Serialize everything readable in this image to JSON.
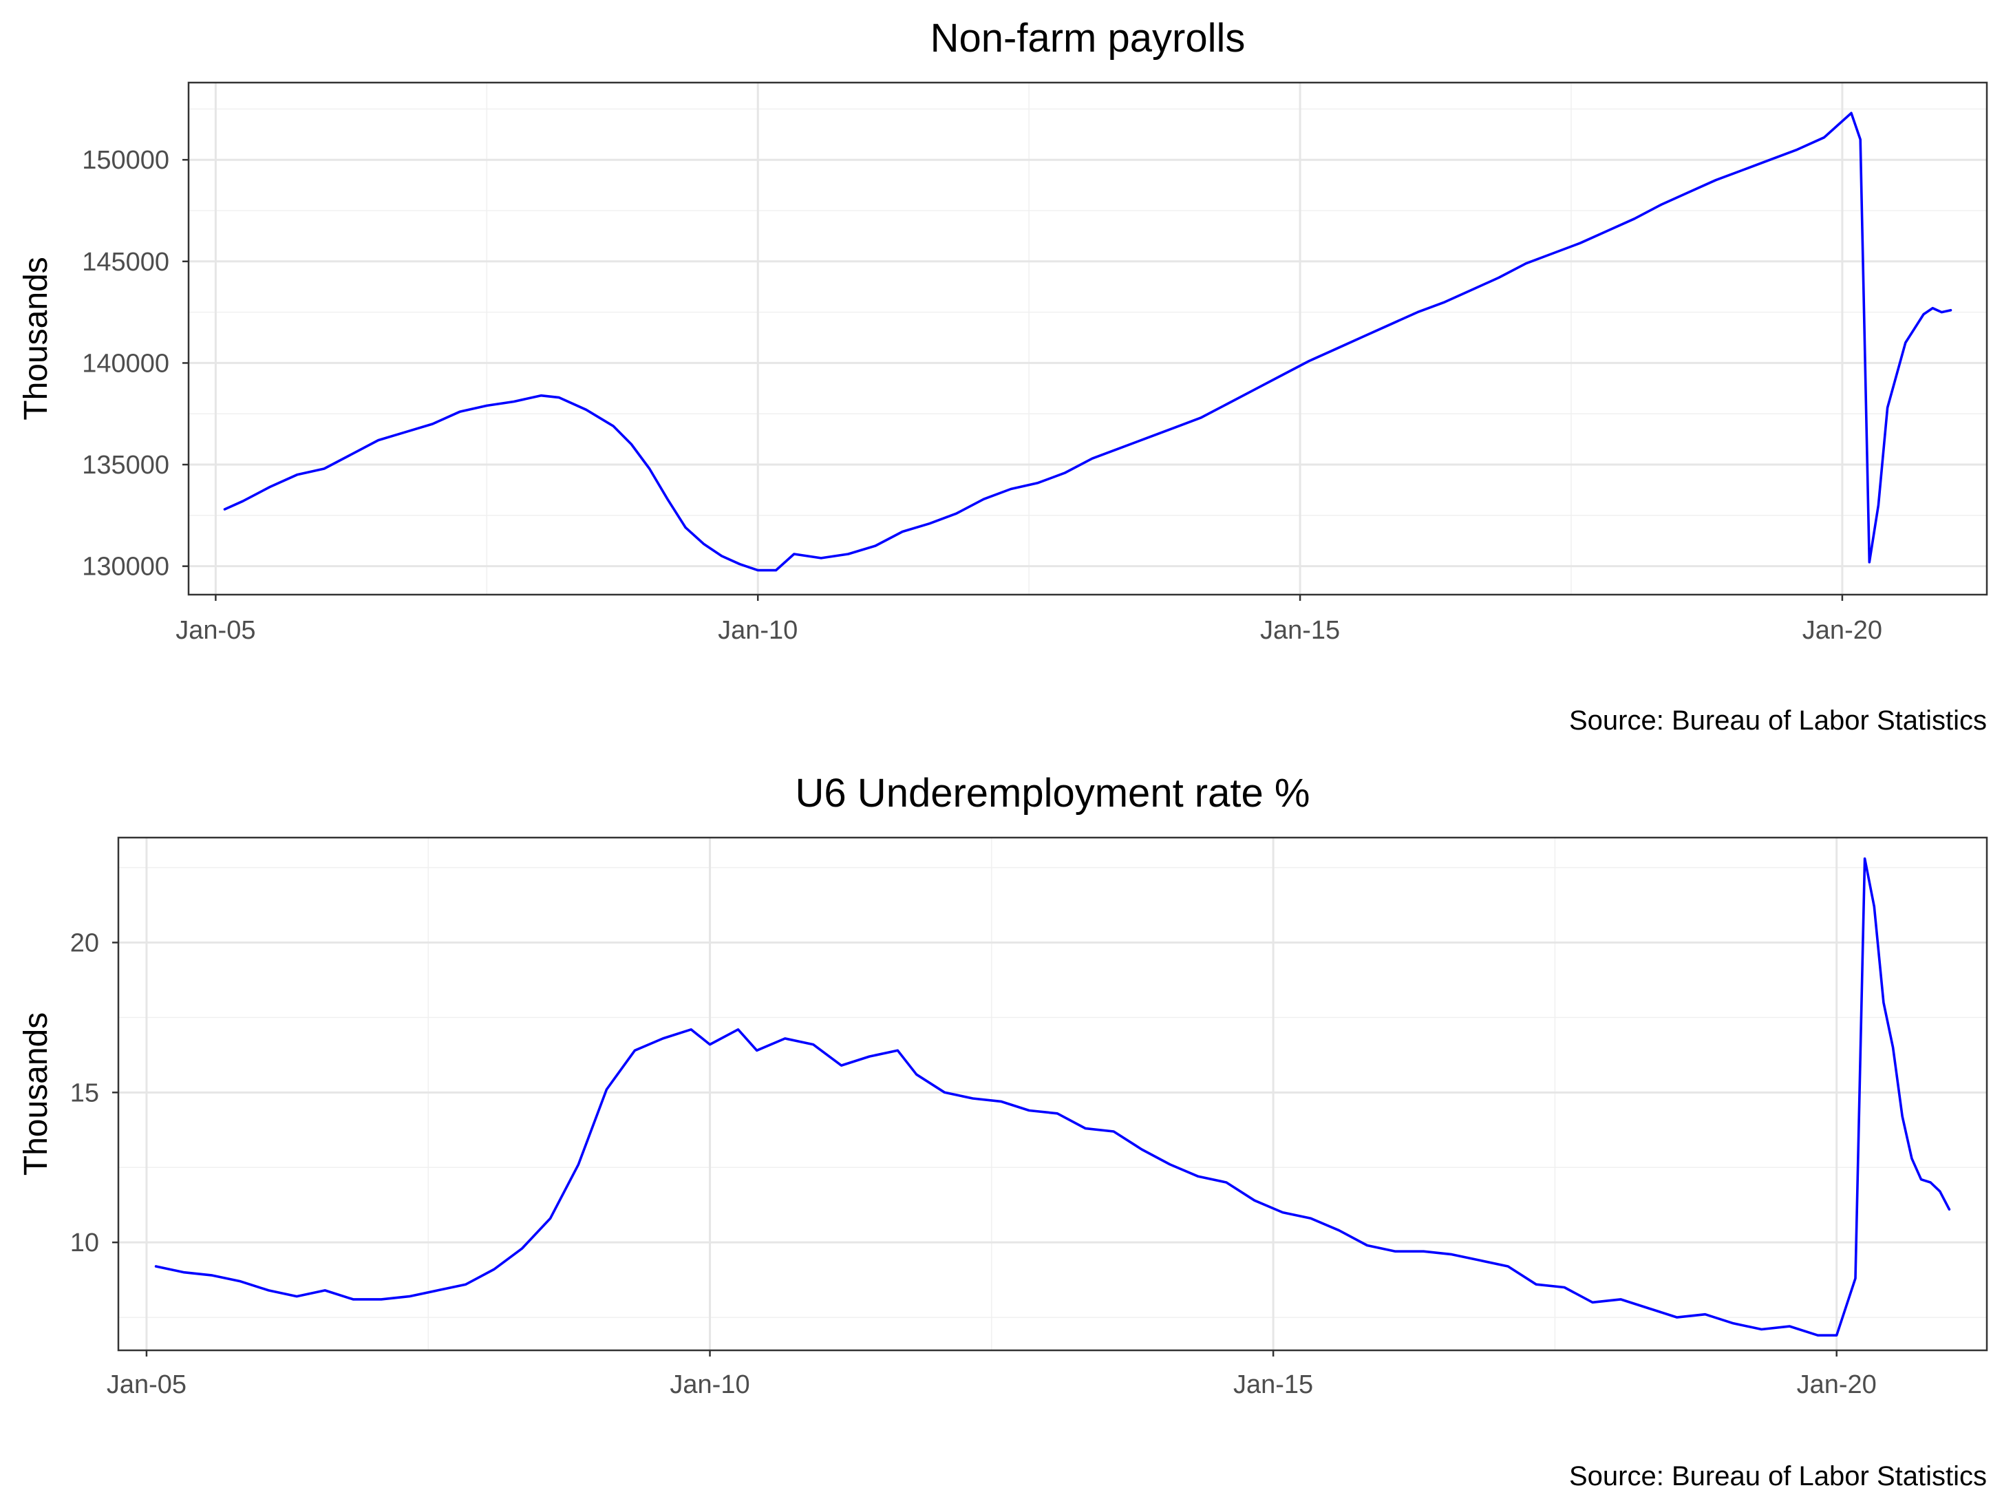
{
  "colors": {
    "series": "#0000ff",
    "grid_major": "#e6e6e6",
    "frame": "#333333"
  },
  "chart_data": [
    {
      "type": "line",
      "title": "Non-farm payrolls",
      "xlabel": "",
      "ylabel": "Thousands",
      "caption": "Source: Bureau of Labor Statistics",
      "xlim": [
        "2004-10",
        "2021-05"
      ],
      "ylim": [
        128600,
        153800
      ],
      "x_ticks": [
        "2005-01",
        "2010-01",
        "2015-01",
        "2020-01"
      ],
      "x_tick_labels": [
        "Jan-05",
        "Jan-10",
        "Jan-15",
        "Jan-20"
      ],
      "y_ticks": [
        130000,
        135000,
        140000,
        145000,
        150000
      ],
      "y_tick_labels": [
        "130000",
        "135000",
        "140000",
        "145000",
        "150000"
      ],
      "grid": true,
      "legend": "none",
      "series": [
        {
          "points": [
            [
              "2005-02",
              132800
            ],
            [
              "2005-04",
              133200
            ],
            [
              "2005-07",
              133900
            ],
            [
              "2005-10",
              134500
            ],
            [
              "2006-01",
              134800
            ],
            [
              "2006-04",
              135500
            ],
            [
              "2006-07",
              136200
            ],
            [
              "2006-10",
              136600
            ],
            [
              "2007-01",
              137000
            ],
            [
              "2007-04",
              137600
            ],
            [
              "2007-07",
              137900
            ],
            [
              "2007-10",
              138100
            ],
            [
              "2008-01",
              138400
            ],
            [
              "2008-03",
              138300
            ],
            [
              "2008-06",
              137700
            ],
            [
              "2008-09",
              136900
            ],
            [
              "2008-11",
              136000
            ],
            [
              "2009-01",
              134800
            ],
            [
              "2009-03",
              133300
            ],
            [
              "2009-05",
              131900
            ],
            [
              "2009-07",
              131100
            ],
            [
              "2009-09",
              130500
            ],
            [
              "2009-11",
              130100
            ],
            [
              "2010-01",
              129800
            ],
            [
              "2010-03",
              129800
            ],
            [
              "2010-05",
              130600
            ],
            [
              "2010-08",
              130400
            ],
            [
              "2010-11",
              130600
            ],
            [
              "2011-02",
              131000
            ],
            [
              "2011-05",
              131700
            ],
            [
              "2011-08",
              132100
            ],
            [
              "2011-11",
              132600
            ],
            [
              "2012-02",
              133300
            ],
            [
              "2012-05",
              133800
            ],
            [
              "2012-08",
              134100
            ],
            [
              "2012-11",
              134600
            ],
            [
              "2013-02",
              135300
            ],
            [
              "2013-05",
              135800
            ],
            [
              "2013-08",
              136300
            ],
            [
              "2013-11",
              136800
            ],
            [
              "2014-02",
              137300
            ],
            [
              "2014-05",
              138000
            ],
            [
              "2014-08",
              138700
            ],
            [
              "2014-11",
              139400
            ],
            [
              "2015-02",
              140100
            ],
            [
              "2015-05",
              140700
            ],
            [
              "2015-08",
              141300
            ],
            [
              "2015-11",
              141900
            ],
            [
              "2016-02",
              142500
            ],
            [
              "2016-05",
              143000
            ],
            [
              "2016-08",
              143600
            ],
            [
              "2016-11",
              144200
            ],
            [
              "2017-02",
              144900
            ],
            [
              "2017-05",
              145400
            ],
            [
              "2017-08",
              145900
            ],
            [
              "2017-11",
              146500
            ],
            [
              "2018-02",
              147100
            ],
            [
              "2018-05",
              147800
            ],
            [
              "2018-08",
              148400
            ],
            [
              "2018-11",
              149000
            ],
            [
              "2019-02",
              149500
            ],
            [
              "2019-05",
              150000
            ],
            [
              "2019-08",
              150500
            ],
            [
              "2019-11",
              151100
            ],
            [
              "2020-02",
              152300
            ],
            [
              "2020-03",
              151000
            ],
            [
              "2020-04",
              130200
            ],
            [
              "2020-05",
              133000
            ],
            [
              "2020-06",
              137800
            ],
            [
              "2020-07",
              139400
            ],
            [
              "2020-08",
              141000
            ],
            [
              "2020-09",
              141700
            ],
            [
              "2020-10",
              142400
            ],
            [
              "2020-11",
              142700
            ],
            [
              "2020-12",
              142500
            ],
            [
              "2021-01",
              142600
            ]
          ]
        }
      ]
    },
    {
      "type": "line",
      "title": "U6 Underemployment rate %",
      "xlabel": "",
      "ylabel": "Thousands",
      "caption": "Source: Bureau of Labor Statistics",
      "xlim": [
        "2004-10",
        "2021-05"
      ],
      "ylim": [
        6.4,
        23.5
      ],
      "x_ticks": [
        "2005-01",
        "2010-01",
        "2015-01",
        "2020-01"
      ],
      "x_tick_labels": [
        "Jan-05",
        "Jan-10",
        "Jan-15",
        "Jan-20"
      ],
      "y_ticks": [
        10,
        15,
        20
      ],
      "y_tick_labels": [
        "10",
        "15",
        "20"
      ],
      "grid": true,
      "legend": "none",
      "series": [
        {
          "points": [
            [
              "2005-02",
              9.2
            ],
            [
              "2005-05",
              9.0
            ],
            [
              "2005-08",
              8.9
            ],
            [
              "2005-11",
              8.7
            ],
            [
              "2006-02",
              8.4
            ],
            [
              "2006-05",
              8.2
            ],
            [
              "2006-08",
              8.4
            ],
            [
              "2006-11",
              8.1
            ],
            [
              "2007-02",
              8.1
            ],
            [
              "2007-05",
              8.2
            ],
            [
              "2007-08",
              8.4
            ],
            [
              "2007-11",
              8.6
            ],
            [
              "2008-02",
              9.1
            ],
            [
              "2008-05",
              9.8
            ],
            [
              "2008-08",
              10.8
            ],
            [
              "2008-11",
              12.6
            ],
            [
              "2009-02",
              15.1
            ],
            [
              "2009-05",
              16.4
            ],
            [
              "2009-08",
              16.8
            ],
            [
              "2009-11",
              17.1
            ],
            [
              "2010-01",
              16.6
            ],
            [
              "2010-04",
              17.1
            ],
            [
              "2010-06",
              16.4
            ],
            [
              "2010-09",
              16.8
            ],
            [
              "2010-12",
              16.6
            ],
            [
              "2011-03",
              15.9
            ],
            [
              "2011-06",
              16.2
            ],
            [
              "2011-09",
              16.4
            ],
            [
              "2011-11",
              15.6
            ],
            [
              "2012-02",
              15.0
            ],
            [
              "2012-05",
              14.8
            ],
            [
              "2012-08",
              14.7
            ],
            [
              "2012-11",
              14.4
            ],
            [
              "2013-02",
              14.3
            ],
            [
              "2013-05",
              13.8
            ],
            [
              "2013-08",
              13.7
            ],
            [
              "2013-11",
              13.1
            ],
            [
              "2014-02",
              12.6
            ],
            [
              "2014-05",
              12.2
            ],
            [
              "2014-08",
              12.0
            ],
            [
              "2014-11",
              11.4
            ],
            [
              "2015-02",
              11.0
            ],
            [
              "2015-05",
              10.8
            ],
            [
              "2015-08",
              10.4
            ],
            [
              "2015-11",
              9.9
            ],
            [
              "2016-02",
              9.7
            ],
            [
              "2016-05",
              9.7
            ],
            [
              "2016-08",
              9.6
            ],
            [
              "2016-11",
              9.4
            ],
            [
              "2017-02",
              9.2
            ],
            [
              "2017-05",
              8.6
            ],
            [
              "2017-08",
              8.5
            ],
            [
              "2017-11",
              8.0
            ],
            [
              "2018-02",
              8.1
            ],
            [
              "2018-05",
              7.8
            ],
            [
              "2018-08",
              7.5
            ],
            [
              "2018-11",
              7.6
            ],
            [
              "2019-02",
              7.3
            ],
            [
              "2019-05",
              7.1
            ],
            [
              "2019-08",
              7.2
            ],
            [
              "2019-11",
              6.9
            ],
            [
              "2020-01",
              6.9
            ],
            [
              "2020-03",
              8.8
            ],
            [
              "2020-04",
              22.8
            ],
            [
              "2020-05",
              21.2
            ],
            [
              "2020-06",
              18.0
            ],
            [
              "2020-07",
              16.5
            ],
            [
              "2020-08",
              14.2
            ],
            [
              "2020-09",
              12.8
            ],
            [
              "2020-10",
              12.1
            ],
            [
              "2020-11",
              12.0
            ],
            [
              "2020-12",
              11.7
            ],
            [
              "2021-01",
              11.1
            ]
          ]
        }
      ]
    }
  ]
}
